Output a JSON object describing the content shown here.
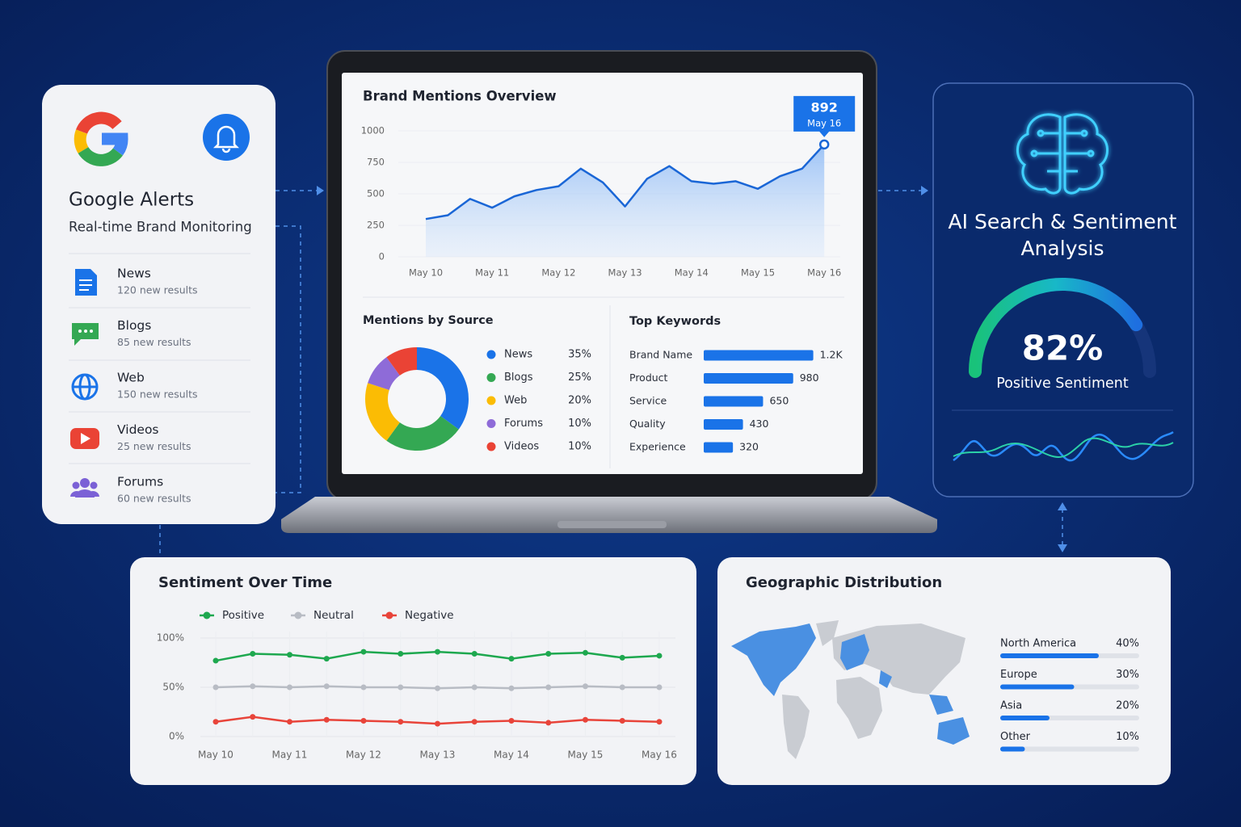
{
  "alerts": {
    "title": "Google Alerts",
    "subtitle": "Real-time Brand Monitoring",
    "items": [
      {
        "label": "News",
        "detail": "120 new results"
      },
      {
        "label": "Blogs",
        "detail": "85 new results"
      },
      {
        "label": "Web",
        "detail": "150 new results"
      },
      {
        "label": "Videos",
        "detail": "25 new results"
      },
      {
        "label": "Forums",
        "detail": "60 new results"
      }
    ]
  },
  "ai_panel": {
    "title": "AI Search & Sentiment Analysis"
  },
  "chart_data": [
    {
      "type": "area-line",
      "title": "Brand Mentions Overview",
      "categories": [
        "May 10",
        null,
        null,
        "May 11",
        null,
        null,
        "May 12",
        null,
        null,
        "May 13",
        null,
        null,
        "May 14",
        null,
        null,
        "May 15",
        null,
        null,
        "May 16"
      ],
      "values": [
        300,
        330,
        460,
        390,
        480,
        530,
        560,
        700,
        590,
        400,
        620,
        720,
        600,
        580,
        600,
        540,
        640,
        700,
        892
      ],
      "color": "#1a66d6",
      "ylim": [
        0,
        1000
      ],
      "yticks": [
        0,
        250,
        500,
        750,
        1000
      ],
      "grid": true,
      "annotation": {
        "x": "May 16",
        "value": 892
      }
    },
    {
      "type": "donut",
      "title": "Mentions by Source",
      "categories": [
        "News",
        "Blogs",
        "Web",
        "Forums",
        "Videos"
      ],
      "values": [
        35,
        25,
        20,
        10,
        10
      ],
      "value_labels": [
        "35%",
        "25%",
        "20%",
        "10%",
        "10%"
      ],
      "colors": [
        "#1a73e8",
        "#34a853",
        "#fbbc04",
        "#8e6bd8",
        "#ea4335"
      ]
    },
    {
      "type": "hbar",
      "title": "Top Keywords",
      "categories": [
        "Brand Name",
        "Product",
        "Service",
        "Quality",
        "Experience"
      ],
      "values": [
        1200,
        980,
        650,
        430,
        320
      ],
      "value_labels": [
        "1.2K",
        "980",
        "650",
        "430",
        "320"
      ],
      "color": "#1a73e8"
    },
    {
      "type": "multi-line",
      "title": "Sentiment Over Time",
      "categories": [
        "May 10",
        null,
        "May 11",
        null,
        "May 12",
        null,
        "May 13",
        null,
        "May 14",
        null,
        "May 15",
        null,
        "May 16"
      ],
      "series": [
        {
          "name": "Positive",
          "color": "#1ea84f",
          "values": [
            77,
            84,
            83,
            79,
            86,
            84,
            86,
            84,
            79,
            84,
            85,
            80,
            82
          ]
        },
        {
          "name": "Neutral",
          "color": "#b8bcc4",
          "values": [
            50,
            51,
            50,
            51,
            50,
            50,
            49,
            50,
            49,
            50,
            51,
            50,
            50
          ]
        },
        {
          "name": "Negative",
          "color": "#e8443a",
          "values": [
            15,
            20,
            15,
            17,
            16,
            15,
            13,
            15,
            16,
            14,
            17,
            16,
            15
          ]
        }
      ],
      "ylim": [
        0,
        100
      ],
      "yticks": [
        {
          "value": 0,
          "label": "0%"
        },
        {
          "value": 50,
          "label": "50%"
        },
        {
          "value": 100,
          "label": "100%"
        }
      ],
      "grid": true
    },
    {
      "type": "progress",
      "title": "Geographic Distribution",
      "categories": [
        "North America",
        "Europe",
        "Asia",
        "Other"
      ],
      "values": [
        40,
        30,
        20,
        10
      ],
      "value_labels": [
        "40%",
        "30%",
        "20%",
        "10%"
      ],
      "color": "#1a73e8"
    },
    {
      "type": "gauge",
      "value": 82,
      "value_label": "82%",
      "label": "Positive Sentiment",
      "ylim": [
        0,
        100
      ]
    }
  ]
}
